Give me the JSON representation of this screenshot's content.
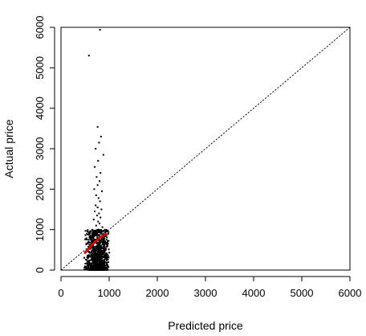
{
  "chart_data": {
    "type": "scatter",
    "title": "",
    "xlabel": "Predicted price",
    "ylabel": "Actual price",
    "xlim": [
      0,
      6000
    ],
    "ylim": [
      0,
      6000
    ],
    "x_ticks": [
      0,
      1000,
      2000,
      3000,
      4000,
      5000,
      6000
    ],
    "y_ticks": [
      0,
      1000,
      2000,
      3000,
      4000,
      5000,
      6000
    ],
    "x_tick_labels": [
      "0",
      "1000",
      "2000",
      "3000",
      "4000",
      "5000",
      "6000"
    ],
    "y_tick_labels": [
      "0",
      "1000",
      "2000",
      "3000",
      "4000",
      "5000",
      "6000"
    ],
    "grid": false,
    "legend": "none",
    "colors": {
      "points": "#000000",
      "smooth_line": "#cc0000",
      "reference_line": "#000000",
      "frame": "#000000"
    },
    "reference_line": {
      "type": "identity",
      "style": "dotted",
      "slope": 1,
      "intercept": 0
    },
    "series": [
      {
        "kind": "points",
        "x": [
          810,
          580,
          760,
          830,
          790,
          720,
          880,
          770,
          700,
          820,
          740,
          800,
          760,
          690,
          850,
          730,
          780,
          810,
          720,
          760,
          840,
          700,
          790,
          750,
          820,
          680,
          770,
          800,
          730,
          860
        ],
        "y": [
          5940,
          5300,
          3540,
          3300,
          3150,
          3000,
          2850,
          2700,
          2550,
          2400,
          2300,
          2200,
          2100,
          2000,
          1950,
          1850,
          1780,
          1700,
          1600,
          1550,
          1500,
          1450,
          1400,
          1350,
          1300,
          1250,
          1200,
          1150,
          1100,
          1060
        ]
      },
      {
        "kind": "smooth",
        "x": [
          500,
          600,
          700,
          800,
          900,
          950
        ],
        "y": [
          430,
          560,
          690,
          800,
          870,
          880
        ]
      }
    ],
    "dense_cluster": {
      "x_range": [
        480,
        1020
      ],
      "y_range": [
        0,
        1000
      ],
      "count": 950
    }
  }
}
